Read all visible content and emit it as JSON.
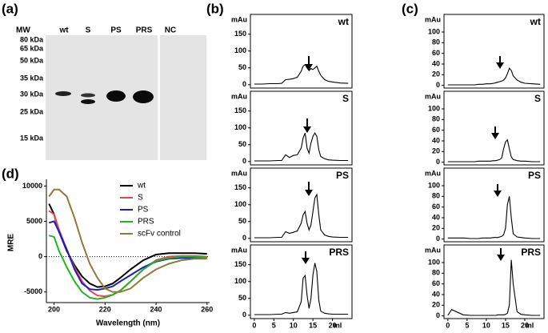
{
  "panel_labels": [
    "(a)",
    "(b)",
    "(c)",
    "(d)"
  ],
  "gel": {
    "mw_header": "MW",
    "markers": [
      "80 kDa",
      "65 kDa",
      "50 kDa",
      "35 kDa",
      "30 kDa",
      "25 kDa",
      "15 kDa"
    ],
    "lanes": [
      "wt",
      "S",
      "PS",
      "PRS",
      "NC"
    ]
  },
  "chart_data": [
    {
      "type": "line",
      "title": "wt",
      "y_label": "mAu",
      "color": "#000000",
      "x": [
        0,
        2,
        4,
        6,
        7,
        8,
        9,
        10,
        11,
        12,
        12.5,
        13,
        13.5,
        14,
        14.5,
        15,
        15.5,
        16,
        16.5,
        17,
        18,
        19,
        20,
        22,
        24
      ],
      "values": [
        2,
        2,
        3,
        3,
        4,
        15,
        16,
        18,
        22,
        40,
        55,
        60,
        50,
        42,
        48,
        45,
        50,
        55,
        40,
        28,
        15,
        10,
        8,
        5,
        4
      ],
      "xlim": [
        -1,
        25
      ],
      "ylim": [
        -10,
        185
      ],
      "yticks": [
        0,
        50,
        100,
        150
      ]
    },
    {
      "type": "line",
      "title": "S",
      "y_label": "mAu",
      "color": "#000000",
      "x": [
        0,
        2,
        4,
        6,
        7,
        8,
        9,
        10,
        11,
        12,
        12.5,
        13,
        13.5,
        14,
        14.5,
        15,
        15.5,
        16,
        16.5,
        17,
        18,
        19,
        20,
        22,
        24
      ],
      "values": [
        2,
        2,
        2,
        3,
        3,
        20,
        12,
        18,
        20,
        40,
        70,
        85,
        40,
        25,
        55,
        75,
        85,
        75,
        35,
        15,
        8,
        5,
        4,
        3,
        3
      ],
      "xlim": [
        -1,
        25
      ],
      "ylim": [
        -10,
        185
      ],
      "yticks": [
        0,
        50,
        100,
        150
      ]
    },
    {
      "type": "line",
      "title": "PS",
      "y_label": "mAu",
      "color": "#000000",
      "x": [
        0,
        2,
        4,
        6,
        7,
        8,
        9,
        10,
        11,
        12,
        12.5,
        13,
        13.5,
        14,
        14.5,
        15,
        15.5,
        16,
        16.5,
        17,
        18,
        19,
        20,
        22,
        24
      ],
      "values": [
        2,
        2,
        2,
        3,
        3,
        20,
        15,
        18,
        22,
        45,
        70,
        80,
        45,
        25,
        40,
        80,
        120,
        130,
        70,
        25,
        10,
        6,
        4,
        3,
        3
      ],
      "xlim": [
        -1,
        25
      ],
      "ylim": [
        -10,
        185
      ],
      "yticks": [
        0,
        50,
        100,
        150
      ]
    },
    {
      "type": "line",
      "title": "PRS",
      "y_label": "mAu",
      "x_label": "ml",
      "color": "#000000",
      "x": [
        0,
        2,
        4,
        6,
        7,
        8,
        9,
        10,
        11,
        12,
        12.5,
        13,
        13.5,
        14,
        14.5,
        15,
        15.5,
        16,
        16.5,
        17,
        18,
        19,
        20,
        22,
        24
      ],
      "values": [
        2,
        2,
        2,
        3,
        3,
        8,
        6,
        8,
        10,
        40,
        110,
        118,
        60,
        20,
        50,
        120,
        155,
        130,
        45,
        12,
        6,
        4,
        3,
        3,
        3
      ],
      "xlim": [
        -1,
        25
      ],
      "xticks": [
        0,
        5,
        10,
        15,
        20
      ],
      "ylim": [
        -10,
        185
      ],
      "yticks": [
        0,
        50,
        100,
        150
      ]
    },
    {
      "type": "line",
      "title": "wt",
      "y_label": "mAu",
      "color": "#000000",
      "x": [
        0,
        2,
        4,
        6,
        7,
        8,
        9,
        10,
        11,
        12,
        12.5,
        13,
        13.5,
        14,
        14.5,
        15,
        15.5,
        16,
        16.5,
        17,
        18,
        19,
        20,
        22,
        24
      ],
      "values": [
        1,
        1,
        1,
        1,
        1,
        2,
        2,
        3,
        3,
        4,
        5,
        6,
        7,
        8,
        10,
        14,
        22,
        32,
        28,
        18,
        10,
        6,
        4,
        3,
        2
      ],
      "xlim": [
        -1,
        25
      ],
      "ylim": [
        -5,
        118
      ],
      "yticks": [
        0,
        20,
        40,
        60,
        80,
        100
      ]
    },
    {
      "type": "line",
      "title": "S",
      "y_label": "mAu",
      "color": "#000000",
      "x": [
        0,
        2,
        4,
        6,
        7,
        8,
        9,
        10,
        11,
        12,
        12.5,
        13,
        13.5,
        14,
        14.5,
        15,
        15.5,
        16,
        16.5,
        17,
        18,
        19,
        20,
        22,
        24
      ],
      "values": [
        1,
        1,
        1,
        1,
        1,
        2,
        2,
        2,
        2,
        3,
        3,
        4,
        5,
        8,
        25,
        38,
        42,
        25,
        10,
        5,
        3,
        2,
        2,
        1,
        1
      ],
      "xlim": [
        -1,
        25
      ],
      "ylim": [
        -5,
        118
      ],
      "yticks": [
        0,
        20,
        40,
        60,
        80,
        100
      ]
    },
    {
      "type": "line",
      "title": "PS",
      "y_label": "mAu",
      "color": "#000000",
      "x": [
        0,
        2,
        4,
        6,
        7,
        8,
        9,
        10,
        11,
        12,
        12.5,
        13,
        13.5,
        14,
        14.5,
        15,
        15.5,
        16,
        16.5,
        17,
        18,
        19,
        20,
        22,
        24
      ],
      "values": [
        2,
        2,
        2,
        1,
        1,
        1,
        2,
        2,
        2,
        3,
        3,
        3,
        4,
        5,
        8,
        20,
        65,
        80,
        40,
        10,
        4,
        3,
        2,
        1,
        1
      ],
      "xlim": [
        -1,
        25
      ],
      "ylim": [
        -5,
        118
      ],
      "yticks": [
        0,
        20,
        40,
        60,
        80,
        100
      ]
    },
    {
      "type": "line",
      "title": "PRS",
      "y_label": "mAu",
      "x_label": "ml",
      "color": "#000000",
      "x": [
        0,
        1,
        4,
        6,
        7,
        8,
        9,
        10,
        11,
        12,
        12.5,
        13,
        13.5,
        14,
        14.5,
        15,
        15.5,
        16,
        16.5,
        17,
        18,
        19,
        20,
        22,
        24
      ],
      "values": [
        1,
        12,
        2,
        1,
        1,
        1,
        1,
        1,
        1,
        1,
        1,
        2,
        2,
        2,
        2,
        3,
        5,
        20,
        105,
        60,
        8,
        3,
        2,
        1,
        1
      ],
      "xlim": [
        -1,
        25
      ],
      "xticks": [
        0,
        5,
        10,
        15,
        20
      ],
      "ylim": [
        -5,
        118
      ],
      "yticks": [
        0,
        20,
        40,
        60,
        80,
        100
      ]
    },
    {
      "type": "line",
      "x_label": "Wavelength (nm)",
      "y_label": "MRE",
      "legend": "upper right",
      "zero_line": true,
      "x": [
        198,
        200,
        202,
        205,
        208,
        211,
        214,
        217,
        220,
        223,
        226,
        230,
        235,
        240,
        245,
        250,
        255,
        260
      ],
      "xlim": [
        197,
        261
      ],
      "xticks": [
        200,
        220,
        240,
        260
      ],
      "ylim": [
        -6500,
        10500
      ],
      "yticks": [
        -5000,
        0,
        5000,
        10000
      ],
      "series": [
        {
          "name": "wt",
          "color": "#000000",
          "values": [
            7500,
            6000,
            3500,
            800,
            -1200,
            -2800,
            -3800,
            -4300,
            -4200,
            -3800,
            -3000,
            -1800,
            -500,
            300,
            500,
            500,
            500,
            400
          ]
        },
        {
          "name": "S",
          "color": "#e8474c",
          "values": [
            6500,
            6000,
            3800,
            1000,
            -1500,
            -3500,
            -4800,
            -5500,
            -5600,
            -5400,
            -4800,
            -3500,
            -1800,
            -500,
            0,
            100,
            100,
            0
          ]
        },
        {
          "name": "PS",
          "color": "#1f1fbf",
          "values": [
            4800,
            5000,
            3500,
            1000,
            -1800,
            -3800,
            -4600,
            -4700,
            -4500,
            -4200,
            -3500,
            -2600,
            -1500,
            -700,
            -300,
            -200,
            -200,
            -200
          ]
        },
        {
          "name": "PRS",
          "color": "#22b422",
          "values": [
            3000,
            2800,
            800,
            -1500,
            -3500,
            -5000,
            -5800,
            -6000,
            -5800,
            -5400,
            -4800,
            -3500,
            -1800,
            -600,
            -200,
            0,
            0,
            -100
          ]
        },
        {
          "name": "scFv control",
          "color": "#8b7d3a",
          "values": [
            8500,
            9500,
            9500,
            8500,
            5500,
            2000,
            -1000,
            -3000,
            -4500,
            -5000,
            -5000,
            -4500,
            -3000,
            -1800,
            -1000,
            -500,
            -300,
            -300
          ]
        }
      ]
    }
  ]
}
